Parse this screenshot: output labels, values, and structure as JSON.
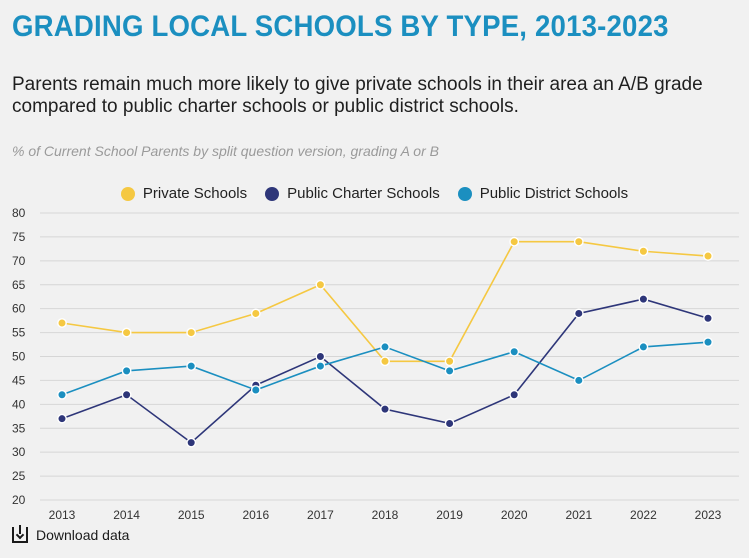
{
  "header": {
    "title": "GRADING LOCAL SCHOOLS BY TYPE, 2013-2023",
    "subtitle": "Parents remain much more likely to give private schools in their area an A/B grade compared to public charter schools or public district schools.",
    "note": "% of Current School Parents by split question version, grading A or B"
  },
  "footer": {
    "download_label": "Download data"
  },
  "chart_data": {
    "type": "line",
    "categories": [
      "2013",
      "2014",
      "2015",
      "2016",
      "2017",
      "2018",
      "2019",
      "2020",
      "2021",
      "2022",
      "2023"
    ],
    "series": [
      {
        "name": "Private Schools",
        "color": "#f5c842",
        "values": [
          57,
          55,
          55,
          59,
          65,
          49,
          49,
          74,
          74,
          72,
          71
        ]
      },
      {
        "name": "Public Charter Schools",
        "color": "#2e3679",
        "values": [
          37,
          42,
          32,
          44,
          50,
          39,
          36,
          42,
          59,
          62,
          58
        ]
      },
      {
        "name": "Public District Schools",
        "color": "#1b8fc0",
        "values": [
          42,
          47,
          48,
          43,
          48,
          52,
          47,
          51,
          45,
          52,
          53
        ]
      }
    ],
    "ylim": [
      20,
      80
    ],
    "yticks": [
      20,
      25,
      30,
      35,
      40,
      45,
      50,
      55,
      60,
      65,
      70,
      75,
      80
    ],
    "grid": true,
    "legend_position": "top-center"
  }
}
